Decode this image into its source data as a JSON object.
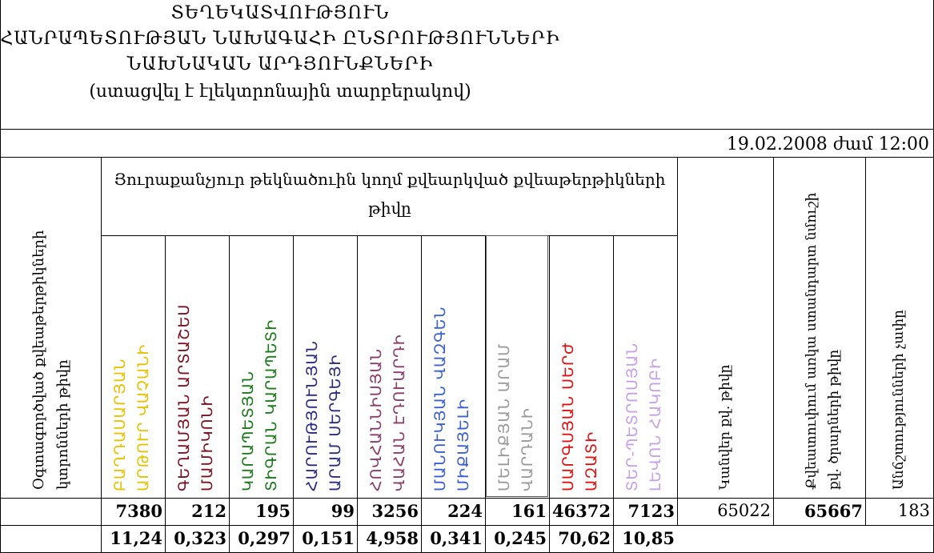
{
  "title_lines": [
    "ՏԵՂԵԿԱՏՎՈՒԹՅՈՒՆ",
    "ՀԱՆՐԱՊԵՏՈՒԹՅԱՆ ՆԱԽԱԳԱՀԻ ԸՆՏՐՈՒԹՅՈՒՆՆԵՐԻ",
    "ՆԱԽՆԱԿԱՆ ԱՐԴՅՈՒՆՔՆԵՐԻ",
    "(ստացվել է էլեկտրոնային տարբերակով)"
  ],
  "date": "19.02.2008 ժամ 12:00",
  "headers": {
    "used_ballots": "Օգտագործված քվեաթերթիկների կտրոնների թիվը",
    "group": "Յուրաքանչյուր թեկնածուին կողմ քվեարկված քվեաթերթիկների թիվը",
    "invalid": "Կանվեր քվ. թիվը",
    "total": "Քվեատուփում առկա ստանդարտ նմուշի քվ. ծրարների թիվը",
    "discrepancy": "Անճշտությունների չափը"
  },
  "candidates": [
    {
      "line1": "ԲԱՂԴԱՍԱՐՅԱՆ",
      "line2": "ԱՐԹՈՒՐ ՎԱՉԱՆԻ",
      "color": "#e8c200",
      "votes": "7380",
      "percent": "11,24"
    },
    {
      "line1": "ԳԵՂԱՄՅԱՆ ԱՐՏԱՇԵՍ",
      "line2": "ՄԱՄԻԿՈՆԻ",
      "color": "#7a1020",
      "votes": "212",
      "percent": "0,323"
    },
    {
      "line1": "ԿԱՐԱՊԵՏՅԱՆ",
      "line2": "ՏԻԳՐԱՆ ԿԱՐԱՊԵՏԻ",
      "color": "#1a7a1a",
      "votes": "195",
      "percent": "0,297"
    },
    {
      "line1": "ՀԱՐՈՒԹՅՈՒՆՅԱՆ",
      "line2": "ԱՐԱՄ ՍԵՐԳԵՅԻ",
      "color": "#2a2a80",
      "votes": "99",
      "percent": "0,151"
    },
    {
      "line1": "ՀՈՎՀԱՆՆԻՍՅԱՆ",
      "line2": "ՎԱՀԱՆ ԷԴՈՒԱՐԴԻ",
      "color": "#8b3a6b",
      "votes": "3256",
      "percent": "4,958"
    },
    {
      "line1": "ՄԱՆՈՒԿՅԱՆ ՎԱԶԳԵՆ",
      "line2": "ՄԻՔԱՅԵԼԻ",
      "color": "#3a5fd0",
      "votes": "224",
      "percent": "0,341"
    },
    {
      "line1": "ՄԵԼԻՔՅԱՆ ԱՐԱՄ",
      "line2": "ՎԱՐԴԱՆԻ",
      "color": "#9a9a9a",
      "votes": "161",
      "percent": "0,245"
    },
    {
      "line1": "ՍԱՐԳՍՅԱՆ ՍԵՐԺ",
      "line2": "ԱԶԱՏԻ",
      "color": "#e01010",
      "votes": "46372",
      "percent": "70,62"
    },
    {
      "line1": "ՏԵՐ-ՊԵՏՐՈՍՅԱՆ",
      "line2": "ԼԵՎՈՆ ՀԱԿՈԲԻ",
      "color": "#c8a0e8",
      "votes": "7123",
      "percent": "10,85"
    }
  ],
  "totals": {
    "invalid_value": "65022",
    "total_value": "65667",
    "discrepancy_value": "183"
  }
}
